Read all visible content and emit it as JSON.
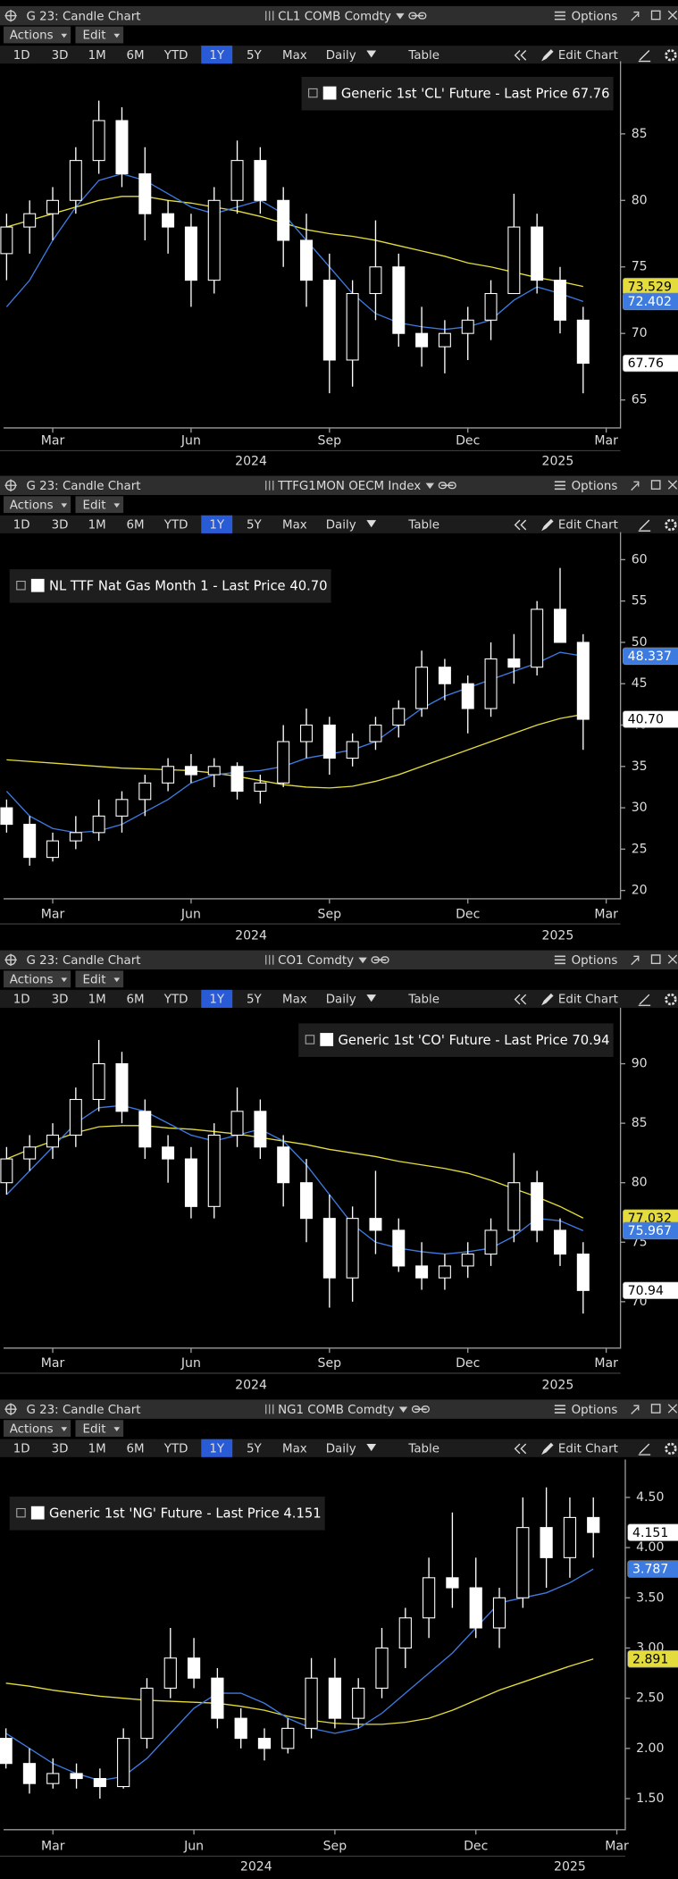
{
  "toolbar": {
    "actions": "Actions",
    "edit": "Edit",
    "periods": [
      "1D",
      "3D",
      "1M",
      "6M",
      "YTD",
      "1Y",
      "5Y",
      "Max"
    ],
    "active_period": 5,
    "frequency": "Daily",
    "table": "Table",
    "edit_chart": "Edit Chart",
    "options": "Options"
  },
  "panels": [
    {
      "title": "G 23: Candle Chart",
      "ticker": "CL1 COMB Comdty"
    },
    {
      "title": "G 23: Candle Chart",
      "ticker": "TTFG1MON OECM Index"
    },
    {
      "title": "G 23: Candle Chart",
      "ticker": "CO1 Comdty"
    },
    {
      "title": "G 23: Candle Chart",
      "ticker": "NG1 COMB Comdty"
    }
  ],
  "chart_data": [
    {
      "type": "candlestick",
      "legend": "Generic 1st 'CL' Future - Last Price 67.76",
      "legend_position": "top-right",
      "x": [
        0,
        1,
        2,
        3,
        4,
        5,
        6,
        7,
        8,
        9,
        10,
        11,
        12,
        13,
        14,
        15,
        16,
        17,
        18,
        19,
        20,
        21,
        22,
        23,
        24,
        25
      ],
      "xlim": [
        -0.13,
        26.62
      ],
      "xticks": [
        {
          "value": 2,
          "label": "Mar"
        },
        {
          "value": 8,
          "label": "Jun"
        },
        {
          "value": 14,
          "label": "Sep"
        },
        {
          "value": 20,
          "label": "Dec"
        },
        {
          "value": 26,
          "label": "Mar"
        }
      ],
      "year_ticks": [
        {
          "value": 10.6,
          "label": "2024"
        },
        {
          "value": 23.9,
          "label": "2025"
        }
      ],
      "ylim": [
        62.9,
        90.1
      ],
      "yticks": [
        65,
        70,
        75,
        80,
        85
      ],
      "candles": {
        "color": "#ffffff",
        "last_label": "67.76",
        "open": [
          76,
          78,
          79,
          80,
          83,
          86,
          82,
          79,
          78,
          74,
          80,
          83,
          80,
          77,
          74,
          68,
          73,
          75,
          70,
          69,
          70,
          71,
          73,
          78,
          74,
          71
        ],
        "high": [
          79,
          80,
          81,
          84,
          87.5,
          87,
          84,
          80,
          79,
          81,
          84.5,
          84,
          81,
          79,
          76,
          74,
          78.5,
          76,
          72,
          71,
          72,
          74,
          80.5,
          79,
          75,
          72
        ],
        "low": [
          74,
          76,
          77,
          79,
          82,
          81,
          77,
          76,
          72,
          73,
          79,
          79,
          75,
          72,
          65.5,
          66,
          71,
          69,
          67.5,
          67,
          68,
          69.5,
          73,
          73,
          70,
          65.5
        ],
        "close": [
          78,
          79,
          80,
          83,
          86,
          82,
          79,
          78,
          74,
          80,
          83,
          80,
          77,
          74,
          68,
          73,
          75,
          70,
          69,
          70,
          71,
          73,
          78,
          74,
          71,
          67.76
        ]
      },
      "series": [
        {
          "color": "#e3dc3c",
          "last_label": "73.529",
          "values": [
            78,
            78.5,
            79,
            79.5,
            80,
            80.3,
            80.3,
            80,
            79.8,
            79.5,
            79.2,
            78.8,
            78.3,
            77.8,
            77.5,
            77.3,
            77,
            76.6,
            76.2,
            75.8,
            75.3,
            75,
            74.6,
            74.2,
            73.9,
            73.529
          ]
        },
        {
          "color": "#3d7be0",
          "last_label": "72.402",
          "values": [
            72,
            74,
            77,
            79.5,
            81.5,
            82,
            81.5,
            80.5,
            79.5,
            79,
            79.5,
            80,
            79,
            77,
            75,
            73,
            71.5,
            70.8,
            70.5,
            70.3,
            70.5,
            71,
            72.5,
            73.5,
            73,
            72.402
          ]
        }
      ]
    },
    {
      "type": "candlestick",
      "legend": "NL TTF Nat Gas Month 1 - Last Price 40.70",
      "legend_position": "top-left",
      "x": [
        0,
        1,
        2,
        3,
        4,
        5,
        6,
        7,
        8,
        9,
        10,
        11,
        12,
        13,
        14,
        15,
        16,
        17,
        18,
        19,
        20,
        21,
        22,
        23,
        24,
        25
      ],
      "xlim": [
        -0.13,
        26.62
      ],
      "xticks": [
        {
          "value": 2,
          "label": "Mar"
        },
        {
          "value": 8,
          "label": "Jun"
        },
        {
          "value": 14,
          "label": "Sep"
        },
        {
          "value": 20,
          "label": "Dec"
        },
        {
          "value": 26,
          "label": "Mar"
        }
      ],
      "year_ticks": [
        {
          "value": 10.6,
          "label": "2024"
        },
        {
          "value": 23.9,
          "label": "2025"
        }
      ],
      "ylim": [
        19,
        62.75
      ],
      "yticks": [
        20,
        25,
        30,
        35,
        40,
        45,
        50,
        55,
        60
      ],
      "candles": {
        "color": "#ffffff",
        "last_label": "40.70",
        "open": [
          30,
          28,
          24,
          26,
          27,
          29,
          31,
          33,
          35,
          34,
          35,
          32,
          33,
          38,
          40,
          36,
          38,
          40,
          42,
          47,
          45,
          42,
          48,
          47,
          54,
          50
        ],
        "high": [
          31,
          29,
          27,
          29,
          31,
          32,
          34,
          36,
          36.5,
          36,
          35.5,
          34,
          40,
          42,
          41,
          39,
          41,
          43,
          49,
          48,
          46,
          50,
          51,
          55,
          59,
          51
        ],
        "low": [
          27,
          23,
          23.5,
          25,
          26,
          27,
          29,
          32,
          33,
          32.5,
          31,
          30.5,
          32.5,
          36,
          34,
          35,
          37,
          38.5,
          41,
          43,
          39,
          41,
          45,
          46,
          50,
          37
        ],
        "close": [
          28,
          24,
          26,
          27,
          29,
          31,
          33,
          35,
          34,
          35,
          32,
          33,
          38,
          40,
          36,
          38,
          40,
          42,
          47,
          45,
          42,
          48,
          47,
          54,
          50,
          40.7
        ]
      },
      "series": [
        {
          "color": "#e3dc3c",
          "values": [
            35.8,
            35.6,
            35.4,
            35.2,
            35,
            34.8,
            34.7,
            34.6,
            34.5,
            34.2,
            33.8,
            33.3,
            32.8,
            32.5,
            32.4,
            32.6,
            33.2,
            34,
            35,
            36,
            37,
            38,
            39,
            40,
            40.8,
            41.3
          ]
        },
        {
          "color": "#3d7be0",
          "last_label": "48.337",
          "values": [
            32,
            29,
            27.5,
            27,
            27.2,
            28,
            29.5,
            31,
            33,
            34,
            34.3,
            34.5,
            35,
            36,
            36.5,
            37,
            38,
            40,
            42,
            43.5,
            44.5,
            45.5,
            46.5,
            47.5,
            48.8,
            48.337
          ]
        }
      ]
    },
    {
      "type": "candlestick",
      "legend": "Generic 1st 'CO' Future - Last Price 70.94",
      "legend_position": "top-right",
      "x": [
        0,
        1,
        2,
        3,
        4,
        5,
        6,
        7,
        8,
        9,
        10,
        11,
        12,
        13,
        14,
        15,
        16,
        17,
        18,
        19,
        20,
        21,
        22,
        23,
        24,
        25
      ],
      "xlim": [
        -0.13,
        26.62
      ],
      "xticks": [
        {
          "value": 2,
          "label": "Mar"
        },
        {
          "value": 8,
          "label": "Jun"
        },
        {
          "value": 14,
          "label": "Sep"
        },
        {
          "value": 20,
          "label": "Dec"
        },
        {
          "value": 26,
          "label": "Mar"
        }
      ],
      "year_ticks": [
        {
          "value": 10.6,
          "label": "2024"
        },
        {
          "value": 23.9,
          "label": "2025"
        }
      ],
      "ylim": [
        66.1,
        94.3
      ],
      "yticks": [
        70,
        75,
        80,
        85,
        90
      ],
      "candles": {
        "color": "#ffffff",
        "last_label": "70.94",
        "open": [
          80,
          82,
          83,
          84,
          87,
          90,
          86,
          83,
          82,
          78,
          84,
          86,
          83,
          80,
          77,
          72,
          77,
          76,
          73,
          72,
          73,
          74,
          76,
          80,
          76,
          74
        ],
        "high": [
          83,
          84,
          85,
          88,
          92,
          91,
          87,
          84,
          83,
          85,
          88,
          87,
          84,
          82,
          79,
          78,
          81,
          77,
          75,
          74,
          75,
          77,
          82.5,
          81,
          77,
          75
        ],
        "low": [
          79,
          81,
          82,
          83,
          86,
          85,
          82,
          80,
          77,
          77,
          83,
          82,
          78,
          75,
          69.5,
          70,
          74,
          72.5,
          71,
          71,
          72,
          73,
          75,
          75,
          73,
          69
        ],
        "close": [
          82,
          83,
          84,
          87,
          90,
          86,
          83,
          82,
          78,
          84,
          86,
          83,
          80,
          77,
          72,
          77,
          76,
          73,
          72,
          73,
          74,
          76,
          80,
          76,
          74,
          70.94
        ]
      },
      "series": [
        {
          "color": "#e3dc3c",
          "last_label": "77.032",
          "values": [
            82,
            82.8,
            83.5,
            84.2,
            84.7,
            84.8,
            84.8,
            84.6,
            84.5,
            84.3,
            84.1,
            83.8,
            83.5,
            83.2,
            82.8,
            82.5,
            82.2,
            81.8,
            81.5,
            81.2,
            80.8,
            80.2,
            79.5,
            78.8,
            78,
            77.032
          ]
        },
        {
          "color": "#3d7be0",
          "last_label": "75.967",
          "values": [
            79,
            81,
            83,
            85,
            86.3,
            86.5,
            86,
            85,
            84,
            83.5,
            84,
            84.5,
            83.5,
            81.5,
            79,
            76.5,
            75,
            74.5,
            74.2,
            74,
            74.2,
            74.5,
            75.5,
            77,
            76.8,
            75.967
          ]
        }
      ]
    },
    {
      "type": "candlestick",
      "legend": "Generic 1st 'NG' Future - Last Price 4.151",
      "legend_position": "top-left",
      "x": [
        0,
        1,
        2,
        3,
        4,
        5,
        6,
        7,
        8,
        9,
        10,
        11,
        12,
        13,
        14,
        15,
        16,
        17,
        18,
        19,
        20,
        21,
        22,
        23,
        24,
        25
      ],
      "xlim": [
        -0.1,
        26.36
      ],
      "xticks": [
        {
          "value": 2,
          "label": "Mar"
        },
        {
          "value": 8,
          "label": "Jun"
        },
        {
          "value": 14,
          "label": "Sep"
        },
        {
          "value": 20,
          "label": "Dec"
        },
        {
          "value": 26,
          "label": "Mar"
        }
      ],
      "year_ticks": [
        {
          "value": 10.65,
          "label": "2024"
        },
        {
          "value": 24,
          "label": "2025"
        }
      ],
      "ylim": [
        1.19,
        4.83
      ],
      "yticks": [
        {
          "value": 1.5,
          "label": "1.50"
        },
        {
          "value": 2,
          "label": "2.00"
        },
        {
          "value": 2.5,
          "label": "2.50"
        },
        {
          "value": 3,
          "label": "3.00"
        },
        {
          "value": 3.5,
          "label": "3.50"
        },
        {
          "value": 4,
          "label": "4.00"
        },
        {
          "value": 4.5,
          "label": "4.50"
        }
      ],
      "candles": {
        "color": "#ffffff",
        "last_label": "4.151",
        "open": [
          2.1,
          1.85,
          1.65,
          1.75,
          1.7,
          1.62,
          2.1,
          2.6,
          2.9,
          2.7,
          2.3,
          2.1,
          2.0,
          2.2,
          2.7,
          2.3,
          2.6,
          3.0,
          3.3,
          3.7,
          3.6,
          3.2,
          3.5,
          4.2,
          3.9,
          4.3
        ],
        "high": [
          2.2,
          2.0,
          1.9,
          1.85,
          1.8,
          2.2,
          2.7,
          3.2,
          3.1,
          2.8,
          2.4,
          2.2,
          2.3,
          2.9,
          2.9,
          2.7,
          3.2,
          3.4,
          3.9,
          4.35,
          3.9,
          3.6,
          4.5,
          4.6,
          4.5,
          4.5
        ],
        "low": [
          1.8,
          1.55,
          1.6,
          1.6,
          1.5,
          1.6,
          2.0,
          2.5,
          2.6,
          2.2,
          2.0,
          1.88,
          1.95,
          2.1,
          2.2,
          2.2,
          2.5,
          2.8,
          3.1,
          3.4,
          3.1,
          3.0,
          3.4,
          3.6,
          3.7,
          3.9
        ],
        "close": [
          1.85,
          1.65,
          1.75,
          1.7,
          1.62,
          2.1,
          2.6,
          2.9,
          2.7,
          2.3,
          2.1,
          2.0,
          2.2,
          2.7,
          2.3,
          2.6,
          3.0,
          3.3,
          3.7,
          3.6,
          3.2,
          3.5,
          4.2,
          3.9,
          4.3,
          4.151
        ]
      },
      "series": [
        {
          "color": "#e3dc3c",
          "last_label": "2.891",
          "values": [
            2.65,
            2.62,
            2.58,
            2.55,
            2.52,
            2.5,
            2.48,
            2.47,
            2.46,
            2.45,
            2.42,
            2.38,
            2.32,
            2.28,
            2.25,
            2.24,
            2.24,
            2.26,
            2.3,
            2.38,
            2.48,
            2.58,
            2.66,
            2.74,
            2.82,
            2.891
          ]
        },
        {
          "color": "#3d7be0",
          "last_label": "3.787",
          "values": [
            2.15,
            2.0,
            1.85,
            1.75,
            1.68,
            1.72,
            1.9,
            2.15,
            2.4,
            2.55,
            2.55,
            2.45,
            2.3,
            2.2,
            2.15,
            2.2,
            2.35,
            2.55,
            2.75,
            2.95,
            3.2,
            3.45,
            3.5,
            3.55,
            3.65,
            3.787
          ]
        }
      ]
    }
  ]
}
